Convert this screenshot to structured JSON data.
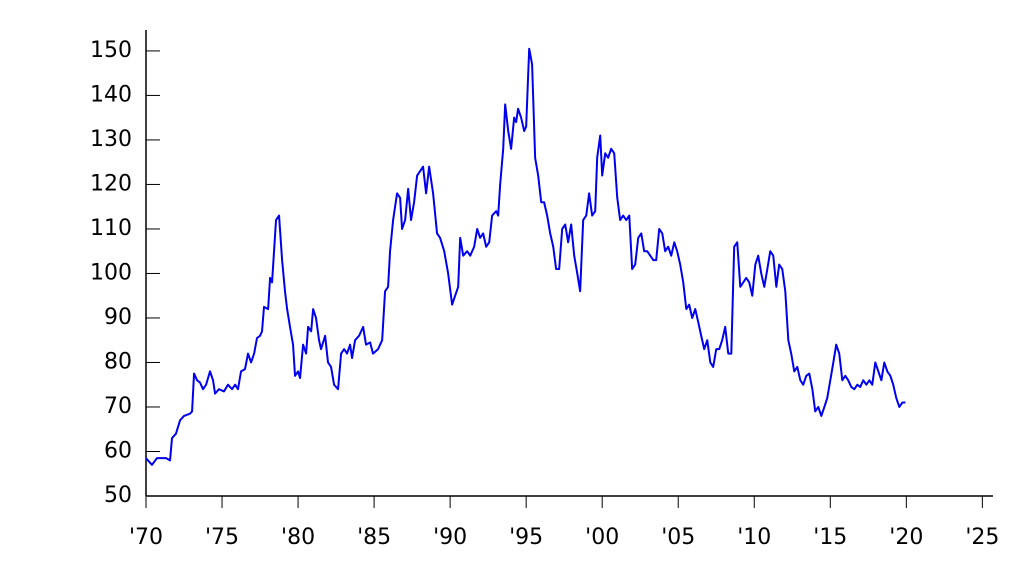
{
  "chart_data": {
    "type": "line",
    "xlim": [
      1970,
      2025.7
    ],
    "ylim": [
      50,
      154.7
    ],
    "xticks": [
      {
        "value": 1970,
        "label": "'70"
      },
      {
        "value": 1975,
        "label": "'75"
      },
      {
        "value": 1980,
        "label": "'80"
      },
      {
        "value": 1985,
        "label": "'85"
      },
      {
        "value": 1990,
        "label": "'90"
      },
      {
        "value": 1995,
        "label": "'95"
      },
      {
        "value": 2000,
        "label": "'00"
      },
      {
        "value": 2005,
        "label": "'05"
      },
      {
        "value": 2010,
        "label": "'10"
      },
      {
        "value": 2015,
        "label": "'15"
      },
      {
        "value": 2020,
        "label": "'20"
      },
      {
        "value": 2025,
        "label": "'25"
      }
    ],
    "yticks": [
      50,
      60,
      70,
      80,
      90,
      100,
      110,
      120,
      130,
      140,
      150
    ],
    "grid": false,
    "series": [
      {
        "color": "#0000ee",
        "x": [
          1970.0,
          1970.39,
          1970.72,
          1971.32,
          1971.58,
          1971.71,
          1971.97,
          1972.24,
          1972.5,
          1972.89,
          1973.03,
          1973.16,
          1973.36,
          1973.55,
          1973.75,
          1973.95,
          1974.21,
          1974.41,
          1974.54,
          1974.8,
          1975.13,
          1975.39,
          1975.66,
          1975.86,
          1976.05,
          1976.25,
          1976.51,
          1976.71,
          1976.91,
          1977.11,
          1977.3,
          1977.5,
          1977.63,
          1977.76,
          1978.03,
          1978.16,
          1978.29,
          1978.55,
          1978.75,
          1978.95,
          1979.14,
          1979.28,
          1979.47,
          1979.67,
          1979.8,
          1980.0,
          1980.13,
          1980.33,
          1980.53,
          1980.66,
          1980.86,
          1980.99,
          1981.18,
          1981.38,
          1981.51,
          1981.78,
          1981.97,
          1982.17,
          1982.37,
          1982.63,
          1982.83,
          1983.03,
          1983.22,
          1983.42,
          1983.55,
          1983.75,
          1984.01,
          1984.28,
          1984.47,
          1984.74,
          1984.93,
          1985.26,
          1985.53,
          1985.72,
          1985.92,
          1986.05,
          1986.25,
          1986.51,
          1986.71,
          1986.84,
          1987.04,
          1987.24,
          1987.43,
          1987.63,
          1987.83,
          1988.03,
          1988.22,
          1988.42,
          1988.62,
          1988.88,
          1989.14,
          1989.34,
          1989.61,
          1989.87,
          1990.13,
          1990.33,
          1990.53,
          1990.66,
          1990.86,
          1991.12,
          1991.32,
          1991.58,
          1991.78,
          1991.97,
          1992.17,
          1992.37,
          1992.57,
          1992.76,
          1993.03,
          1993.16,
          1993.29,
          1993.49,
          1993.62,
          1993.82,
          1994.01,
          1994.21,
          1994.34,
          1994.47,
          1994.67,
          1994.87,
          1995.0,
          1995.2,
          1995.39,
          1995.59,
          1995.79,
          1995.99,
          1996.18,
          1996.38,
          1996.58,
          1996.78,
          1996.97,
          1997.17,
          1997.37,
          1997.57,
          1997.76,
          1997.96,
          1998.16,
          1998.36,
          1998.55,
          1998.75,
          1998.95,
          1999.14,
          1999.34,
          1999.54,
          1999.67,
          1999.87,
          2000.0,
          2000.2,
          2000.39,
          2000.59,
          2000.79,
          2000.99,
          2001.18,
          2001.38,
          2001.58,
          2001.78,
          2001.97,
          2002.17,
          2002.37,
          2002.57,
          2002.76,
          2002.96,
          2003.16,
          2003.36,
          2003.55,
          2003.75,
          2003.95,
          2004.14,
          2004.34,
          2004.54,
          2004.74,
          2004.93,
          2005.13,
          2005.33,
          2005.53,
          2005.72,
          2005.92,
          2006.12,
          2006.32,
          2006.51,
          2006.71,
          2006.91,
          2007.11,
          2007.3,
          2007.5,
          2007.7,
          2007.89,
          2008.09,
          2008.29,
          2008.49,
          2008.68,
          2008.88,
          2009.08,
          2009.28,
          2009.47,
          2009.67,
          2009.87,
          2010.07,
          2010.26,
          2010.46,
          2010.66,
          2010.86,
          2011.05,
          2011.25,
          2011.45,
          2011.64,
          2011.84,
          2012.04,
          2012.24,
          2012.43,
          2012.63,
          2012.83,
          2013.03,
          2013.22,
          2013.42,
          2013.62,
          2013.82,
          2014.01,
          2014.21,
          2014.41,
          2014.61,
          2014.8,
          2015.0,
          2015.2,
          2015.39,
          2015.59,
          2015.79,
          2015.99,
          2016.18,
          2016.38,
          2016.58,
          2016.78,
          2016.97,
          2017.17,
          2017.37,
          2017.57,
          2017.76,
          2017.96,
          2018.16,
          2018.36,
          2018.55,
          2018.75,
          2018.95,
          2019.14,
          2019.34,
          2019.54,
          2019.74,
          2019.94
        ],
        "values": [
          58.5,
          57,
          58.5,
          58.5,
          58,
          63,
          64,
          67,
          68,
          68.5,
          69,
          77.5,
          76,
          75.5,
          74,
          75,
          78,
          76,
          73,
          74,
          73.5,
          75,
          74,
          75,
          74,
          78,
          78.5,
          82,
          80,
          82,
          85.5,
          86,
          87,
          92.5,
          92,
          99,
          98,
          112,
          113,
          103,
          96,
          92,
          88,
          84,
          77,
          78,
          76.5,
          84,
          82,
          88,
          87,
          92,
          90,
          85,
          83,
          86,
          80,
          79,
          75,
          74,
          82,
          83,
          82,
          84,
          81,
          85,
          86,
          88,
          84,
          84.5,
          82,
          83,
          85,
          96,
          97,
          105,
          112,
          118,
          117,
          110,
          112,
          119,
          112,
          116,
          122,
          123,
          124,
          118,
          124,
          118,
          109,
          108,
          105,
          100,
          93,
          95,
          97,
          108,
          104,
          105,
          104,
          106,
          110,
          108,
          109,
          106,
          107,
          113,
          114,
          113,
          120,
          128,
          138,
          132,
          128,
          135,
          134,
          137,
          135,
          132,
          133,
          150.5,
          147,
          126,
          122,
          116,
          116,
          113,
          109,
          106,
          101,
          101,
          110,
          111,
          107,
          111,
          104,
          100,
          96,
          112,
          113,
          118,
          113,
          114,
          126,
          131,
          122,
          127,
          126,
          128,
          127,
          117,
          112,
          113,
          112,
          113,
          101,
          102,
          108,
          109,
          105,
          105,
          104,
          103,
          103,
          110,
          109,
          105,
          106,
          104,
          107,
          105,
          102,
          98,
          92,
          93,
          90,
          92,
          89,
          86,
          83,
          85,
          80,
          79,
          83,
          83,
          85,
          88,
          82,
          82,
          106,
          107,
          97,
          98,
          99,
          98,
          95,
          102,
          104,
          100,
          97,
          101,
          105,
          104,
          97,
          102,
          101,
          96,
          85,
          82,
          78,
          79,
          76,
          75,
          77,
          77.5,
          74,
          69,
          70,
          68,
          70,
          72,
          76,
          80,
          84,
          82,
          76,
          77,
          76,
          74.5,
          74,
          75,
          74.5,
          76,
          75,
          76,
          75,
          80,
          78,
          76,
          80,
          78,
          77,
          75,
          72,
          70,
          71,
          71
        ]
      }
    ]
  }
}
